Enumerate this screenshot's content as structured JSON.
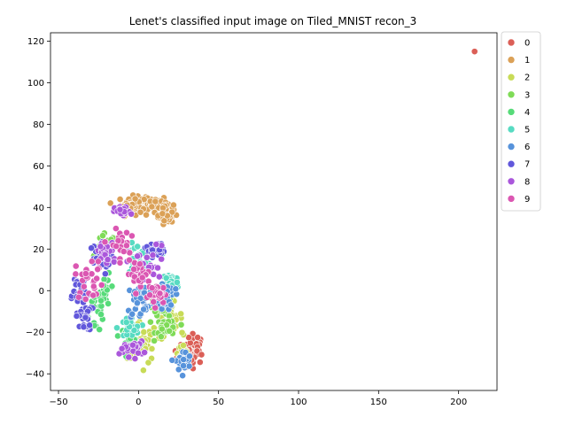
{
  "chart_data": {
    "type": "scatter",
    "title": "Lenet's classified input image on Tiled_MNIST recon_3",
    "xlabel": "",
    "ylabel": "",
    "xlim": [
      -55,
      224
    ],
    "ylim": [
      -48,
      124
    ],
    "x_ticks": [
      -50,
      0,
      50,
      100,
      150,
      200
    ],
    "y_ticks": [
      -40,
      -20,
      0,
      20,
      40,
      60,
      80,
      100,
      120
    ],
    "legend_placement": "outside-right-top",
    "grid": false,
    "series": [
      {
        "name": "0",
        "color": "#db5f57",
        "centers": [
          [
            35,
            -28,
            5,
            6
          ],
          [
            28,
            -32,
            4,
            4
          ],
          [
            210,
            115,
            0,
            0
          ]
        ],
        "count": 120
      },
      {
        "name": "1",
        "color": "#dba157",
        "centers": [
          [
            5,
            42,
            12,
            3
          ],
          [
            -5,
            40,
            6,
            3
          ],
          [
            17,
            37,
            4,
            4
          ]
        ],
        "count": 180
      },
      {
        "name": "2",
        "color": "#c8db57",
        "centers": [
          [
            8,
            -22,
            8,
            8
          ],
          [
            20,
            -12,
            6,
            6
          ],
          [
            0,
            -28,
            6,
            4
          ],
          [
            28,
            -30,
            3,
            5
          ]
        ],
        "count": 110
      },
      {
        "name": "3",
        "color": "#7fdb57",
        "centers": [
          [
            12,
            -8,
            8,
            8
          ],
          [
            -20,
            20,
            5,
            6
          ],
          [
            18,
            -18,
            6,
            4
          ]
        ],
        "count": 90
      },
      {
        "name": "4",
        "color": "#57db79",
        "centers": [
          [
            -28,
            -10,
            6,
            8
          ],
          [
            -20,
            0,
            4,
            6
          ],
          [
            -6,
            -22,
            5,
            4
          ]
        ],
        "count": 70
      },
      {
        "name": "5",
        "color": "#57dbc2",
        "centers": [
          [
            0,
            15,
            8,
            6
          ],
          [
            -6,
            -18,
            6,
            5
          ],
          [
            20,
            4,
            4,
            4
          ]
        ],
        "count": 90
      },
      {
        "name": "6",
        "color": "#5793db",
        "centers": [
          [
            2,
            -5,
            8,
            8
          ],
          [
            28,
            -34,
            4,
            4
          ],
          [
            18,
            -2,
            4,
            6
          ]
        ],
        "count": 100
      },
      {
        "name": "7",
        "color": "#6157db",
        "centers": [
          [
            -38,
            0,
            6,
            7
          ],
          [
            -25,
            15,
            6,
            6
          ],
          [
            -34,
            -12,
            4,
            6
          ],
          [
            10,
            20,
            5,
            3
          ]
        ],
        "count": 110
      },
      {
        "name": "8",
        "color": "#aa57db",
        "centers": [
          [
            6,
            12,
            10,
            8
          ],
          [
            -10,
            38,
            4,
            2
          ],
          [
            -20,
            18,
            6,
            5
          ],
          [
            -4,
            -28,
            6,
            3
          ]
        ],
        "count": 100
      },
      {
        "name": "9",
        "color": "#db57b2",
        "centers": [
          [
            -30,
            6,
            8,
            8
          ],
          [
            -12,
            22,
            5,
            6
          ],
          [
            0,
            8,
            6,
            5
          ],
          [
            12,
            -2,
            5,
            4
          ]
        ],
        "count": 110
      }
    ]
  }
}
